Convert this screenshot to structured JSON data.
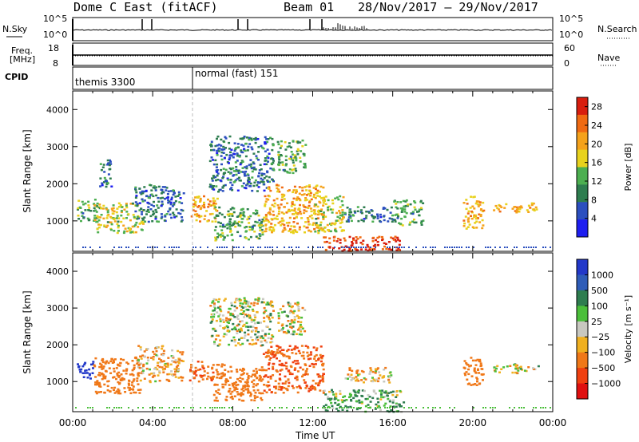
{
  "header": {
    "radar": "Dome C East (fitACF)",
    "beam": "Beam 01",
    "dates": "28/Nov/2017 – 29/Nov/2017"
  },
  "strip_panels": {
    "sky": {
      "left_label": "N.Sky",
      "right_label": "N.Search",
      "left_ticks": [
        "10^5",
        "10^0"
      ],
      "right_ticks": [
        "10^5",
        "10^0"
      ]
    },
    "freq": {
      "left_label_top": "Freq.",
      "left_label_bottom": "[MHz]",
      "right_label": "Nave",
      "left_ticks": [
        "18",
        "8"
      ],
      "right_ticks": [
        "60",
        "0"
      ]
    },
    "cpid": {
      "label": "CPID",
      "modes": [
        {
          "name": "themis 3300",
          "start_h": 0
        },
        {
          "name": "normal (fast) 151",
          "start_h": 6
        }
      ]
    }
  },
  "colors": {
    "power_scale": [
      "#1e1ef0",
      "#2b4fbf",
      "#2e7d4f",
      "#4caf50",
      "#e8d21d",
      "#f5a21b",
      "#f06a12",
      "#d81e0e"
    ],
    "velocity_scale": [
      "#2238c9",
      "#2e5cb8",
      "#2e7d4f",
      "#4bbf3a",
      "#c8c8c0",
      "#f0b020",
      "#f07818",
      "#f04010",
      "#e01010"
    ]
  },
  "chart_data": [
    {
      "type": "heatmap",
      "title": "",
      "xlabel": "Time UT",
      "ylabel": "Slant Range [km]",
      "xlim": [
        0,
        24
      ],
      "ylim": [
        180,
        4500
      ],
      "x_ticks": [
        "00:00",
        "04:00",
        "08:00",
        "12:00",
        "16:00",
        "20:00",
        "00:00"
      ],
      "y_ticks": [
        1000,
        2000,
        3000,
        4000
      ],
      "colorbar": {
        "label": "Power [dB]",
        "ticks": [
          4,
          8,
          12,
          16,
          20,
          24,
          28
        ],
        "range": [
          0,
          30
        ]
      },
      "regions": [
        {
          "t0": 0.2,
          "t1": 1.2,
          "r0": 1000,
          "r1": 1600,
          "level": 12
        },
        {
          "t0": 1.0,
          "t1": 3.5,
          "r0": 700,
          "r1": 1500,
          "level": 16
        },
        {
          "t0": 1.3,
          "t1": 1.9,
          "r0": 1900,
          "r1": 2700,
          "level": 8
        },
        {
          "t0": 3.0,
          "t1": 5.5,
          "r0": 1000,
          "r1": 2000,
          "level": 8
        },
        {
          "t0": 5.8,
          "t1": 7.2,
          "r0": 1000,
          "r1": 1700,
          "level": 20
        },
        {
          "t0": 6.8,
          "t1": 10.0,
          "r0": 1800,
          "r1": 3300,
          "level": 8
        },
        {
          "t0": 7.0,
          "t1": 9.5,
          "r0": 500,
          "r1": 1400,
          "level": 12
        },
        {
          "t0": 10.2,
          "t1": 11.6,
          "r0": 2300,
          "r1": 3200,
          "level": 12
        },
        {
          "t0": 9.5,
          "t1": 12.5,
          "r0": 700,
          "r1": 2000,
          "level": 20
        },
        {
          "t0": 12.0,
          "t1": 13.5,
          "r0": 700,
          "r1": 1700,
          "level": 16
        },
        {
          "t0": 12.5,
          "t1": 16.3,
          "r0": 200,
          "r1": 600,
          "level": 28
        },
        {
          "t0": 13.5,
          "t1": 16.0,
          "r0": 1000,
          "r1": 1400,
          "level": 8
        },
        {
          "t0": 16.0,
          "t1": 17.5,
          "r0": 900,
          "r1": 1600,
          "level": 12
        },
        {
          "t0": 19.5,
          "t1": 20.5,
          "r0": 800,
          "r1": 1700,
          "level": 20
        },
        {
          "t0": 21.0,
          "t1": 23.3,
          "r0": 1250,
          "r1": 1500,
          "level": 20
        }
      ]
    },
    {
      "type": "heatmap",
      "title": "",
      "xlabel": "Time UT",
      "ylabel": "Slant Range [km]",
      "xlim": [
        0,
        24
      ],
      "ylim": [
        180,
        4500
      ],
      "x_ticks": [
        "00:00",
        "04:00",
        "08:00",
        "12:00",
        "16:00",
        "20:00",
        "00:00"
      ],
      "y_ticks": [
        1000,
        2000,
        3000,
        4000
      ],
      "colorbar": {
        "label": "Velocity [m s⁻¹]",
        "ticks": [
          "1000",
          "500",
          "100",
          "25",
          "−25",
          "−100",
          "−500",
          "−1000"
        ]
      },
      "regions": [
        {
          "t0": 0.2,
          "t1": 1.0,
          "r0": 1100,
          "r1": 1600,
          "level": 1000
        },
        {
          "t0": 1.0,
          "t1": 3.4,
          "r0": 700,
          "r1": 1700,
          "level": -300
        },
        {
          "t0": 3.2,
          "t1": 5.5,
          "r0": 1000,
          "r1": 2000,
          "level": -100
        },
        {
          "t0": 5.8,
          "t1": 7.0,
          "r0": 1000,
          "r1": 1600,
          "level": -500
        },
        {
          "t0": 6.8,
          "t1": 10.0,
          "r0": 2000,
          "r1": 3300,
          "level": 0
        },
        {
          "t0": 7.0,
          "t1": 9.5,
          "r0": 500,
          "r1": 1500,
          "level": -300
        },
        {
          "t0": 10.2,
          "t1": 11.6,
          "r0": 2300,
          "r1": 3200,
          "level": 0
        },
        {
          "t0": 9.5,
          "t1": 12.5,
          "r0": 700,
          "r1": 2000,
          "level": -500
        },
        {
          "t0": 12.5,
          "t1": 16.5,
          "r0": 200,
          "r1": 800,
          "level": 100
        },
        {
          "t0": 13.5,
          "t1": 16.0,
          "r0": 1000,
          "r1": 1400,
          "level": -100
        },
        {
          "t0": 19.5,
          "t1": 20.5,
          "r0": 900,
          "r1": 1700,
          "level": -300
        },
        {
          "t0": 21.0,
          "t1": 23.3,
          "r0": 1250,
          "r1": 1500,
          "level": 0
        }
      ]
    }
  ]
}
